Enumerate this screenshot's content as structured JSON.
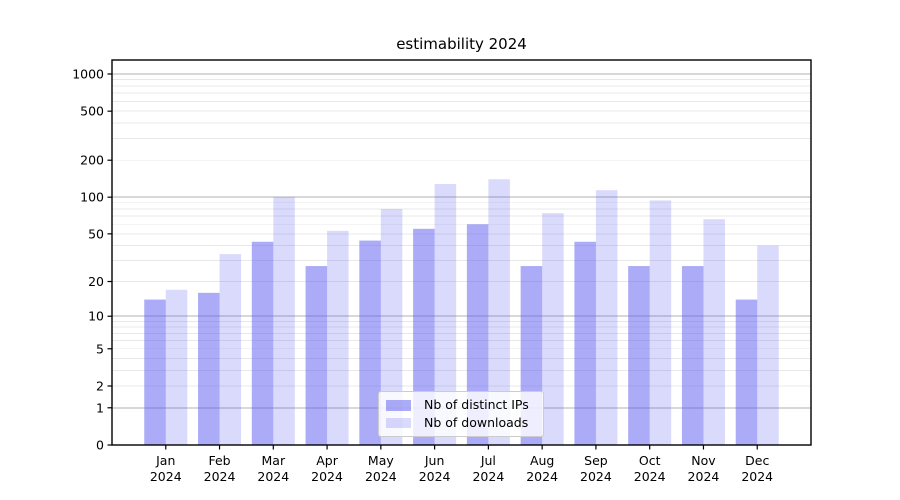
{
  "title": "estimability 2024",
  "chart_data": {
    "type": "bar",
    "title": "estimability 2024",
    "categories": [
      "Jan 2024",
      "Feb 2024",
      "Mar 2024",
      "Apr 2024",
      "May 2024",
      "Jun 2024",
      "Jul 2024",
      "Aug 2024",
      "Sep 2024",
      "Oct 2024",
      "Nov 2024",
      "Dec 2024"
    ],
    "series": [
      {
        "name": "Nb of distinct IPs",
        "values": [
          14,
          16,
          43,
          27,
          44,
          55,
          60,
          27,
          43,
          27,
          27,
          14
        ],
        "color": "rgba(87,87,240,0.5)",
        "color_on_white": "#ababf7"
      },
      {
        "name": "Nb of downloads",
        "values": [
          17,
          34,
          100,
          53,
          80,
          128,
          140,
          74,
          114,
          94,
          66,
          40
        ],
        "color": "rgba(87,87,240,0.22)",
        "color_on_white": "#dadaf9"
      }
    ],
    "yscale": "log1p",
    "y_ticks": [
      0,
      1,
      2,
      5,
      10,
      20,
      50,
      100,
      200,
      500,
      1000
    ],
    "ylim": [
      0,
      1250
    ],
    "xlabel": "",
    "ylabel": "",
    "grid": "horizontal, major lines at 1/10/100/1000, minor lines at 2-9 per decade",
    "legend_position": "lower center",
    "colors": {
      "grid_major": "#b0b0b0",
      "grid_minor": "#e8e8e8",
      "spine": "#000000",
      "text": "#000000",
      "legend_bg": "rgba(255,255,255,0.8)",
      "legend_border": "#cccccc"
    }
  }
}
